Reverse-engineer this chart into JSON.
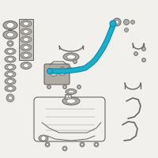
{
  "background_color": "#f2f0ec",
  "pipe_color": "#1ab0cc",
  "pipe_color_dark": "#0088aa",
  "line_color": "#999999",
  "line_color_dark": "#666666",
  "part_fill": "#c8c4bc",
  "part_fill2": "#b0aca4",
  "part_dark": "#888480",
  "white": "#ffffff",
  "figsize": [
    2.0,
    2.0
  ],
  "dpi": 100
}
